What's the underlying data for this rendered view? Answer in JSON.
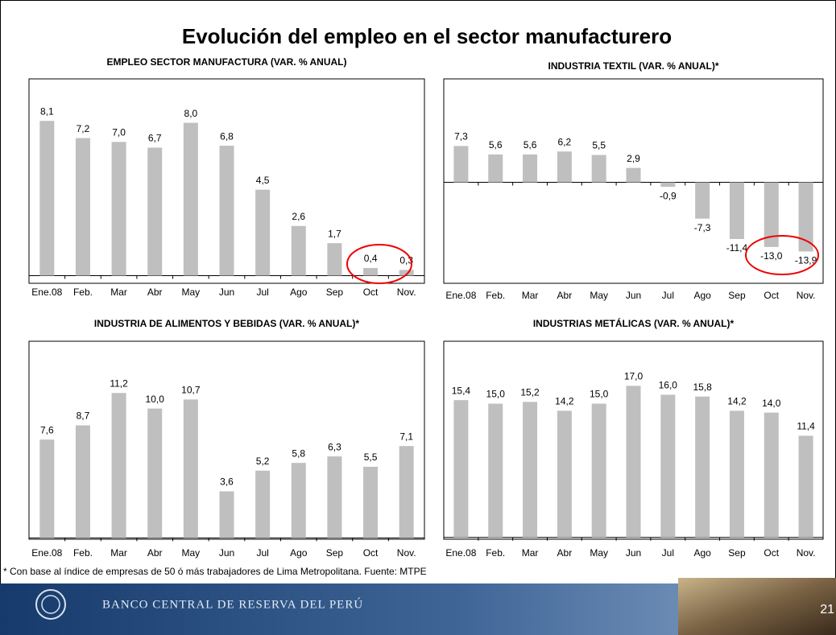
{
  "title": "Evolución del empleo en el sector manufacturero",
  "footnote": "* Con base al índice de empresas de 50 ó más trabajadores de Lima Metropolitana. Fuente: MTPE",
  "footer": {
    "bank": "BANCO CENTRAL DE RESERVA DEL PERÚ",
    "page": "21"
  },
  "chart_data": [
    {
      "type": "bar",
      "title": "EMPLEO SECTOR MANUFACTURA (VAR. % ANUAL)",
      "categories": [
        "Ene.08",
        "Feb.",
        "Mar",
        "Abr",
        "May",
        "Jun",
        "Jul",
        "Ago",
        "Sep",
        "Oct",
        "Nov."
      ],
      "values": [
        8.1,
        7.2,
        7.0,
        6.7,
        8.0,
        6.8,
        4.5,
        2.6,
        1.7,
        0.4,
        0.3
      ],
      "value_labels": [
        "8,1",
        "7,2",
        "7,0",
        "6,7",
        "8,0",
        "6,8",
        "4,5",
        "2,6",
        "1,7",
        "0,4",
        "0,3"
      ],
      "color": "#bfbfbf",
      "ylim": [
        -0.4,
        10.3
      ]
    },
    {
      "type": "bar",
      "title": "INDUSTRIA TEXTIL (VAR. % ANUAL)*",
      "categories": [
        "Ene.08",
        "Feb.",
        "Mar",
        "Abr",
        "May",
        "Jun",
        "Jul",
        "Ago",
        "Sep",
        "Oct",
        "Nov."
      ],
      "values": [
        7.3,
        5.6,
        5.6,
        6.2,
        5.5,
        2.9,
        -0.9,
        -7.3,
        -11.4,
        -13.0,
        -13.9
      ],
      "value_labels": [
        "7,3",
        "5,6",
        "5,6",
        "6,2",
        "5,5",
        "2,9",
        "-0,9",
        "-7,3",
        "-11,4",
        "-13,0",
        "-13,9"
      ],
      "color": "#bfbfbf",
      "ylim": [
        -20.3,
        20.8
      ]
    },
    {
      "type": "bar",
      "title": "INDUSTRIA DE ALIMENTOS Y BEBIDAS (VAR. % ANUAL)*",
      "categories": [
        "Ene.08",
        "Feb.",
        "Mar",
        "Abr",
        "May",
        "Jun",
        "Jul",
        "Ago",
        "Sep",
        "Oct",
        "Nov."
      ],
      "values": [
        7.6,
        8.7,
        11.2,
        10.0,
        10.7,
        3.6,
        5.2,
        5.8,
        6.3,
        5.5,
        7.1
      ],
      "value_labels": [
        "7,6",
        "8,7",
        "11,2",
        "10,0",
        "10,7",
        "3,6",
        "5,2",
        "5,8",
        "6,3",
        "5,5",
        "7,1"
      ],
      "color": "#bfbfbf",
      "ylim": [
        -0.1,
        15.2
      ]
    },
    {
      "type": "bar",
      "title": "INDUSTRIAS METÁLICAS (VAR. % ANUAL)*",
      "categories": [
        "Ene.08",
        "Feb.",
        "Mar",
        "Abr",
        "May",
        "Jun",
        "Jul",
        "Ago",
        "Sep",
        "Oct",
        "Nov."
      ],
      "values": [
        15.4,
        15.0,
        15.2,
        14.2,
        15.0,
        17.0,
        16.0,
        15.8,
        14.2,
        14.0,
        11.4
      ],
      "value_labels": [
        "15,4",
        "15,0",
        "15,2",
        "14,2",
        "15,0",
        "17,0",
        "16,0",
        "15,8",
        "14,2",
        "14,0",
        "11,4"
      ],
      "color": "#bfbfbf",
      "ylim": [
        -0.2,
        22.0
      ]
    }
  ]
}
